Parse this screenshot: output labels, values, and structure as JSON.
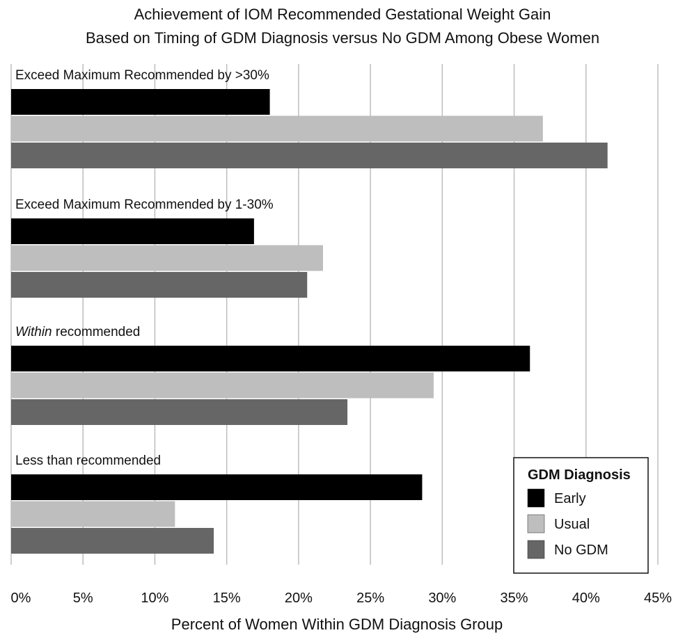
{
  "chart_data": {
    "type": "bar",
    "orientation": "horizontal",
    "title_lines": [
      "Achievement of IOM Recommended Gestational Weight Gain",
      "Based on Timing of GDM Diagnosis versus No GDM Among Obese Women"
    ],
    "xlabel": "Percent of Women Within GDM Diagnosis Group",
    "ylabel": "",
    "xlim": [
      0,
      45
    ],
    "x_ticks": [
      "0%",
      "5%",
      "10%",
      "15%",
      "20%",
      "25%",
      "30%",
      "35%",
      "40%",
      "45%"
    ],
    "grid": "vertical",
    "categories": [
      {
        "prefix": "Exceed Maximum Recommended by >30%",
        "prefix_italic": false,
        "suffix": ""
      },
      {
        "prefix": "Exceed Maximum Recommended by 1-30%",
        "prefix_italic": false,
        "suffix": ""
      },
      {
        "prefix": "Within",
        "prefix_italic": true,
        "suffix": " recommended"
      },
      {
        "prefix": "Less than recommended",
        "prefix_italic": false,
        "suffix": ""
      }
    ],
    "series": [
      {
        "name": "Early",
        "color": "#000000",
        "values": [
          18.0,
          16.9,
          36.1,
          28.6
        ]
      },
      {
        "name": "Usual",
        "color": "#bebebe",
        "values": [
          37.0,
          21.7,
          29.4,
          11.4
        ]
      },
      {
        "name": "No GDM",
        "color": "#666666",
        "values": [
          41.5,
          20.6,
          23.4,
          14.1
        ]
      }
    ],
    "legend": {
      "title": "GDM Diagnosis",
      "position": "bottom-right"
    }
  }
}
